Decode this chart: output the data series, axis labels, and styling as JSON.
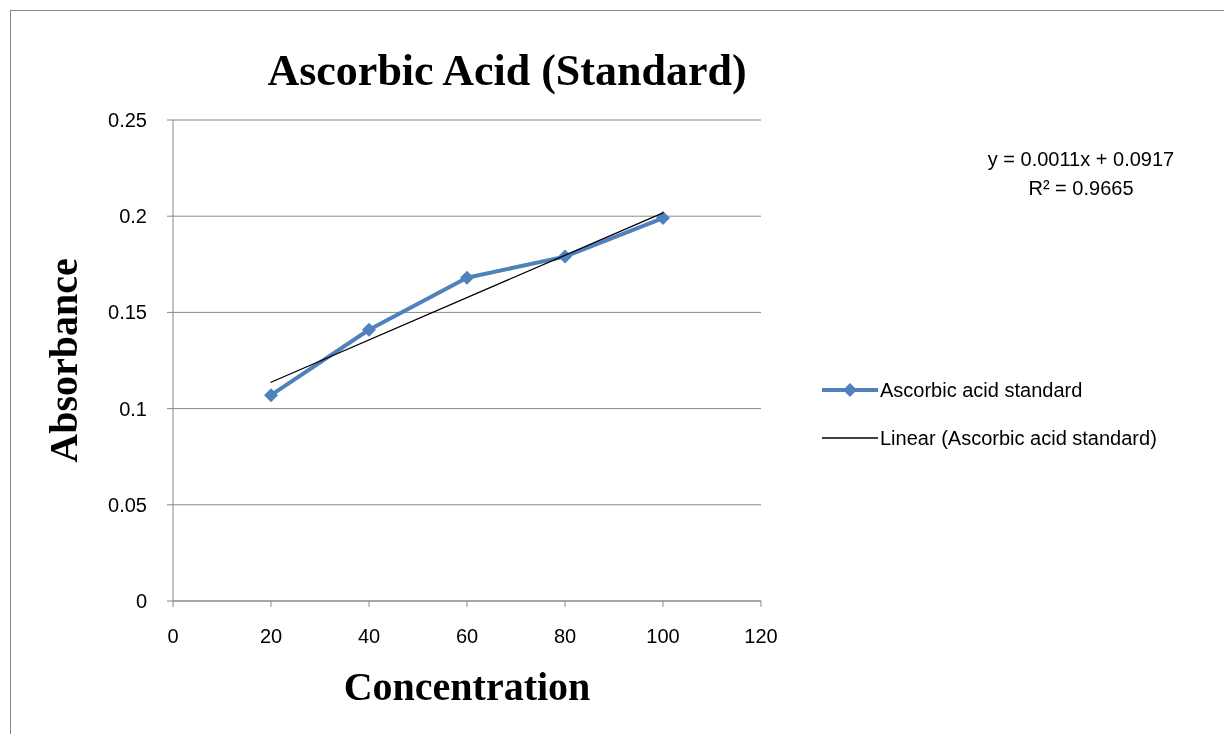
{
  "chart_data": {
    "type": "line",
    "title": "Ascorbic Acid (Standard)",
    "xlabel": "Concentration",
    "ylabel": "Absorbance",
    "annotations": [
      "y = 0.0011x + 0.0917\nR² = 0.9665"
    ],
    "x": [
      20,
      40,
      60,
      80,
      100
    ],
    "series": [
      {
        "name": "Ascorbic acid standard",
        "color": "#4f81bd",
        "values": [
          0.107,
          0.141,
          0.168,
          0.179,
          0.199
        ],
        "marker": "diamond"
      },
      {
        "name": "Linear (Ascorbic acid standard)",
        "color": "#000000",
        "type": "line",
        "x": [
          20,
          100
        ],
        "values": [
          0.1137,
          0.2017
        ],
        "marker": "none"
      }
    ],
    "xlim": [
      0,
      120
    ],
    "xticks": [
      0,
      20,
      40,
      60,
      80,
      100,
      120
    ],
    "ylim": [
      0,
      0.25
    ],
    "yticks": [
      0,
      0.05,
      0.1,
      0.15,
      0.2,
      0.25
    ],
    "grid": "y",
    "legend": "right",
    "line_style": "solid"
  }
}
